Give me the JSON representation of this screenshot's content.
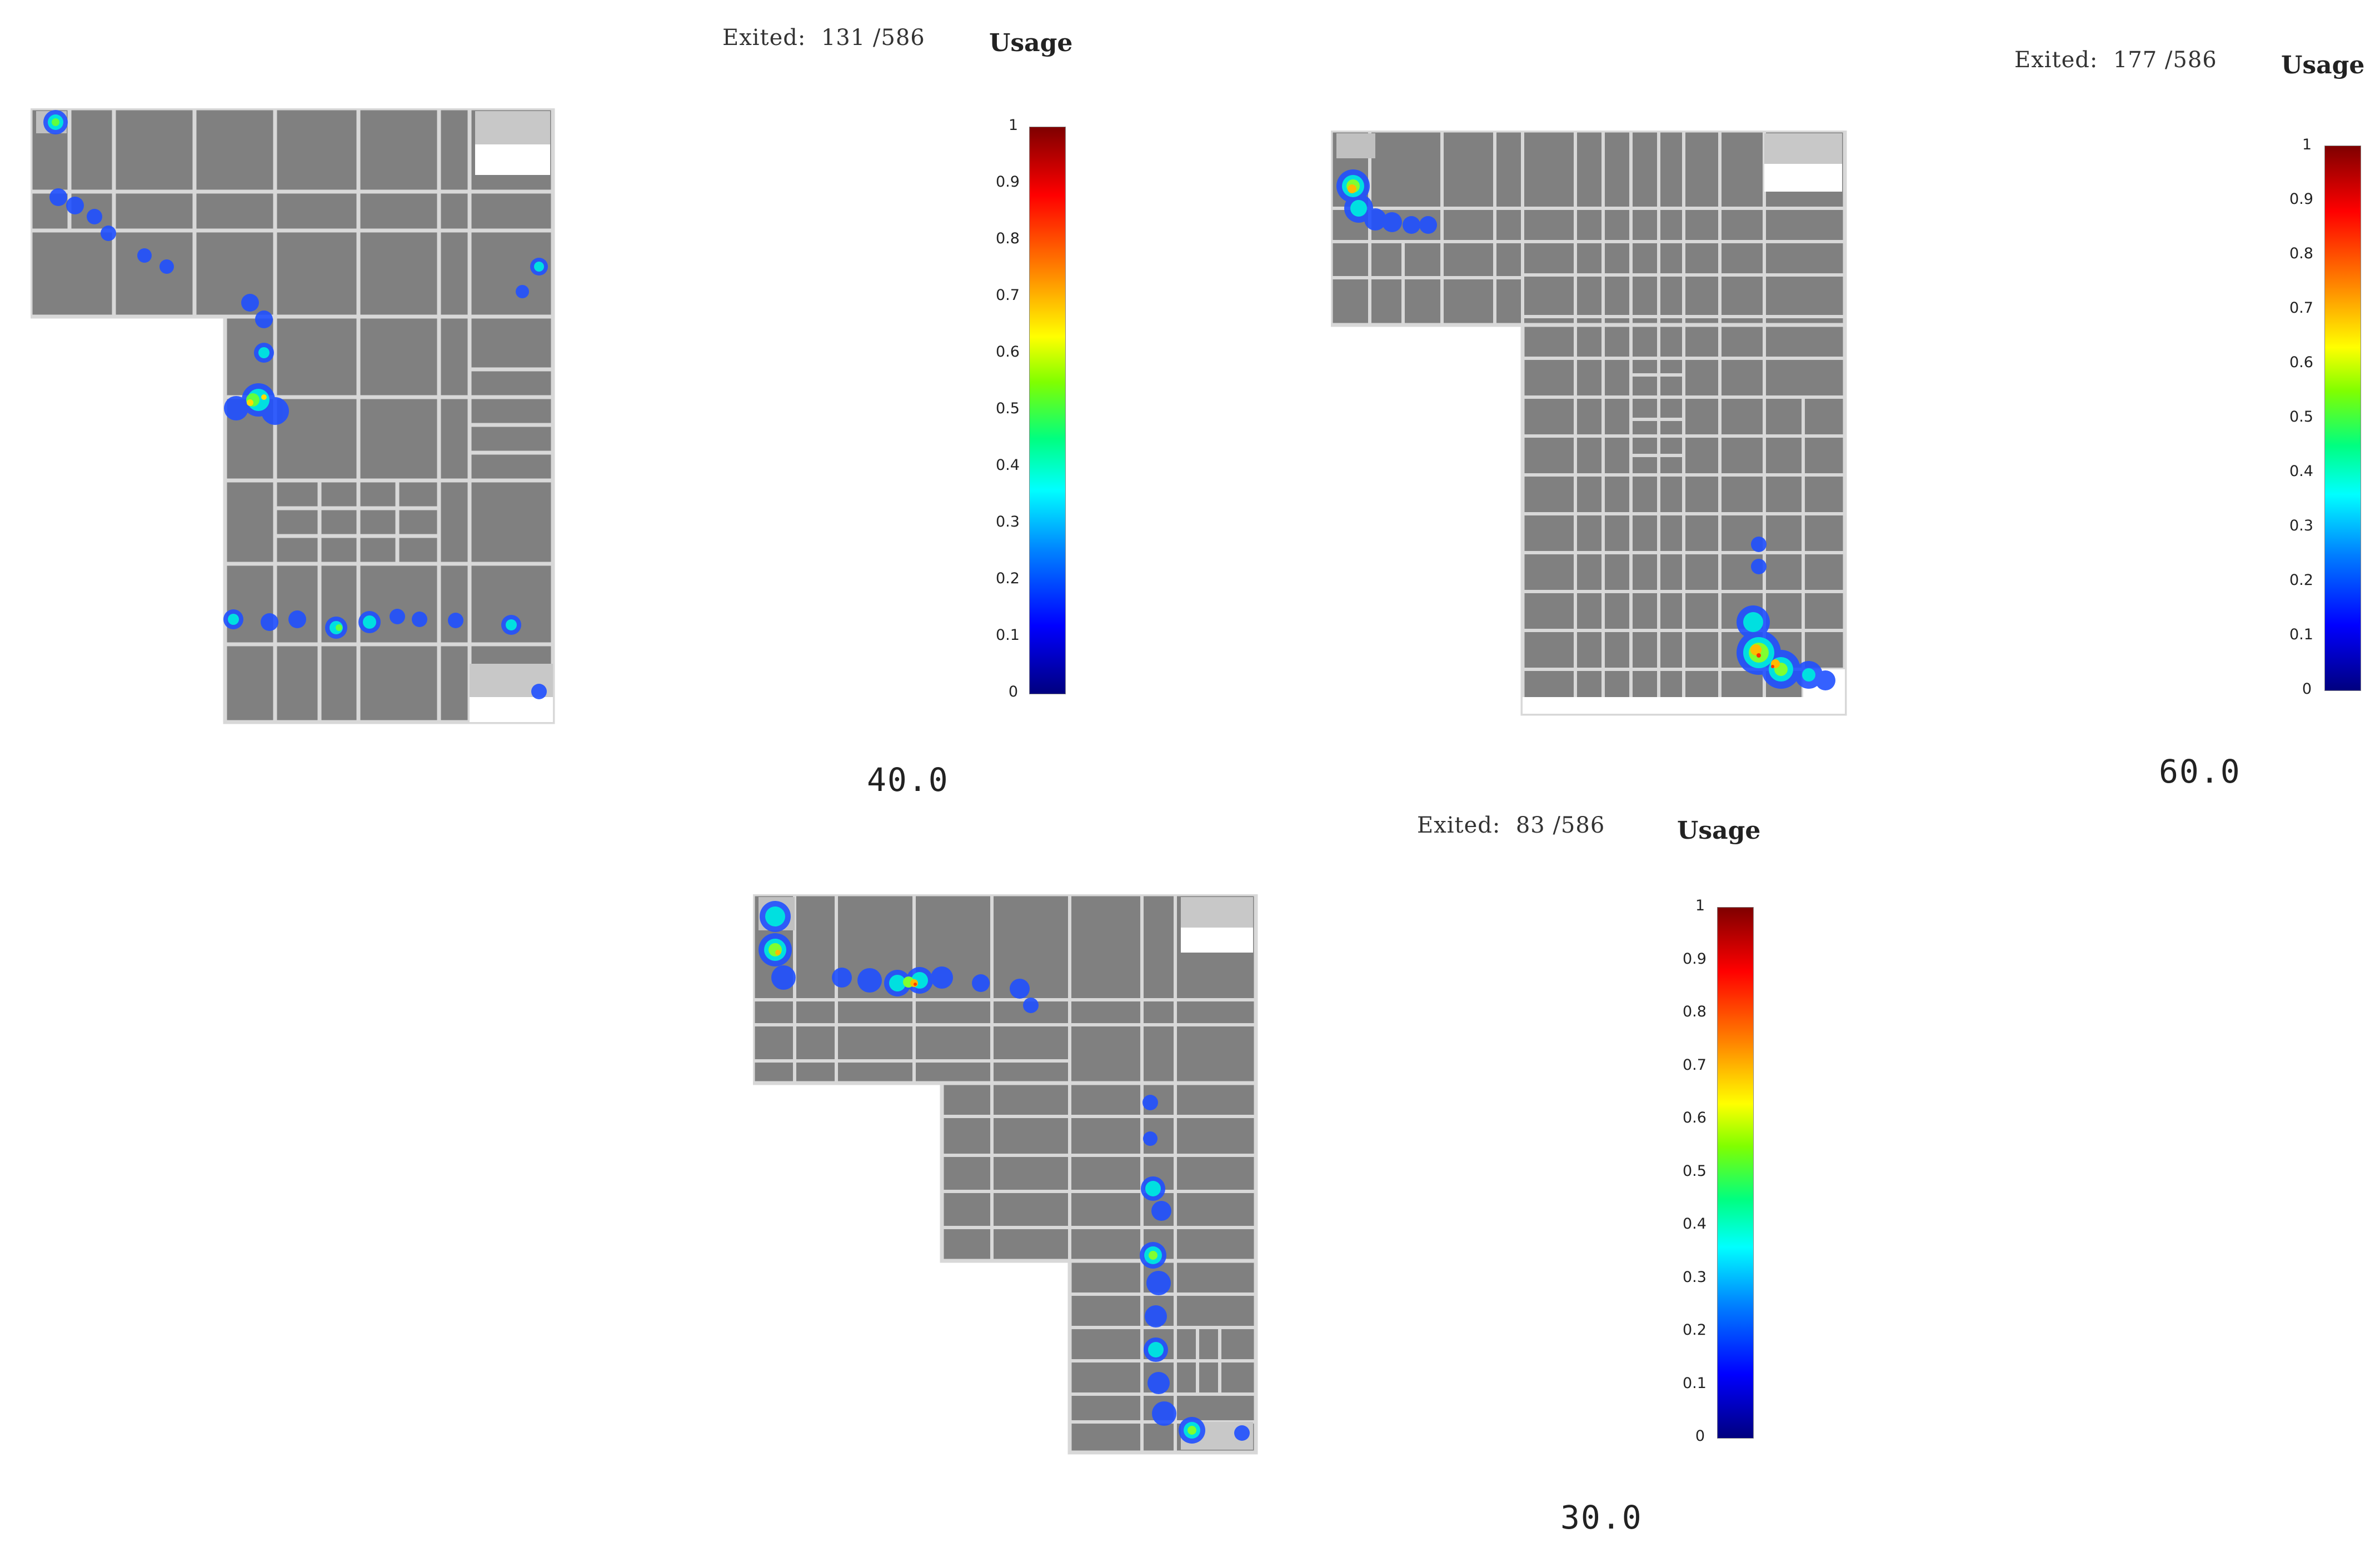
{
  "panels": [
    {
      "exited_label": "Exited:",
      "exited_count": "131 /586",
      "usage_title": "Usage",
      "time": "40.0"
    },
    {
      "exited_label": "Exited:",
      "exited_count": "177 /586",
      "usage_title": "Usage",
      "time": "60.0"
    },
    {
      "exited_label": "Exited:",
      "exited_count": "83 /586",
      "usage_title": "Usage",
      "time": "30.0"
    }
  ],
  "colorbar_ticks": [
    "1",
    "0.9",
    "0.8",
    "0.7",
    "0.6",
    "0.5",
    "0.4",
    "0.3",
    "0.2",
    "0.1",
    "0"
  ],
  "colormap": {
    "low": "#00007f",
    "mid": "#00ff80",
    "high": "#7f0000"
  },
  "floor_color": "#808080",
  "wall_color": "#d8d8d8"
}
